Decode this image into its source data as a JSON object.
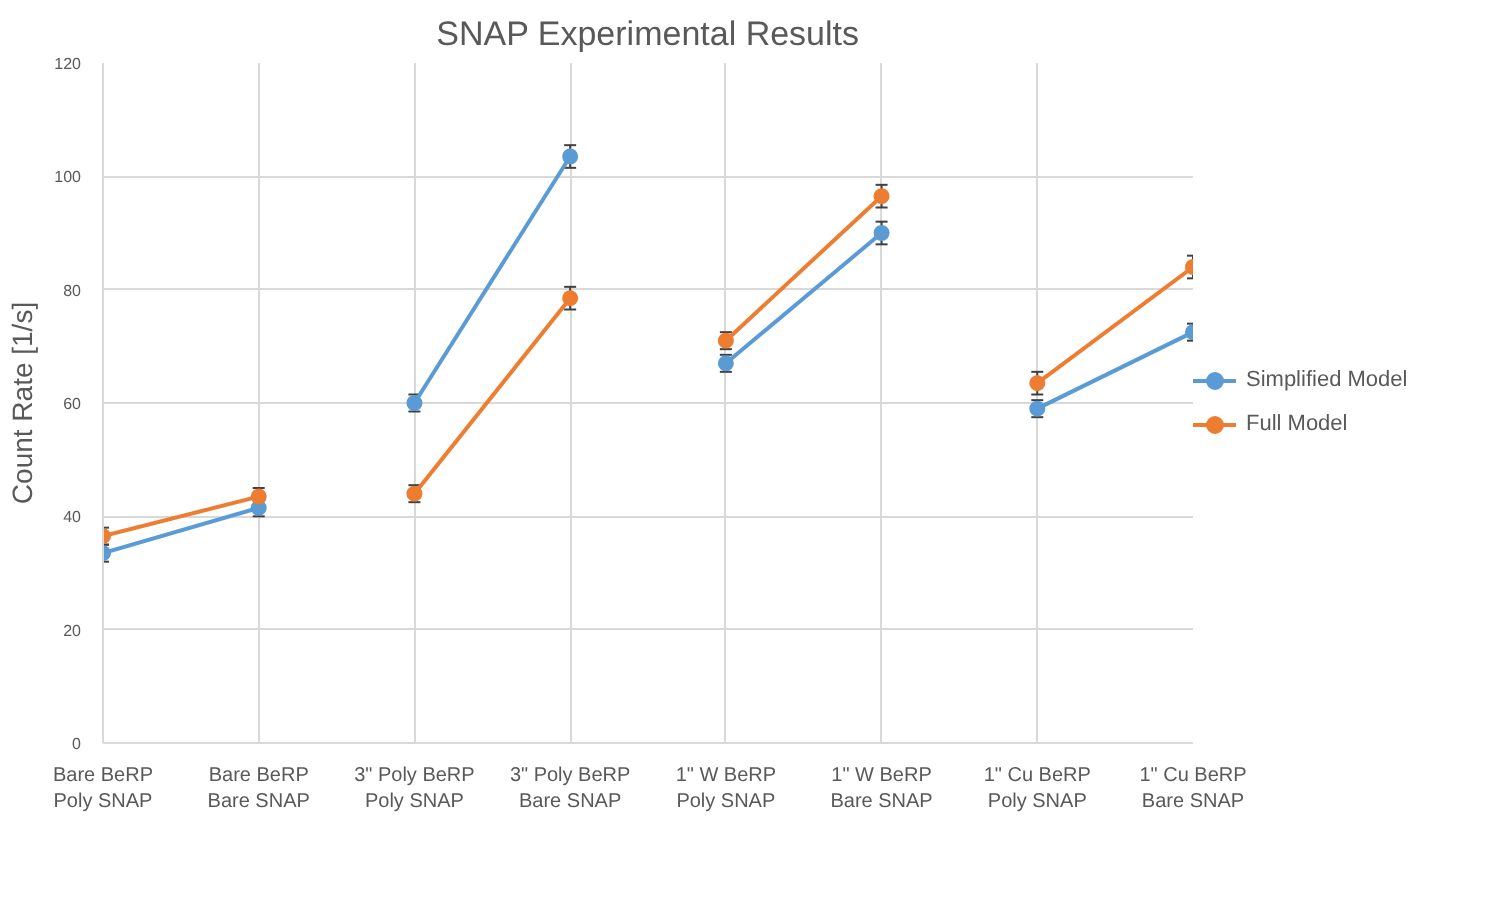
{
  "chart_data": {
    "type": "line",
    "title": "SNAP Experimental Results",
    "ylabel": "Count Rate [1/s]",
    "categories": [
      "Bare BeRP\nPoly SNAP",
      "Bare BeRP\nBare SNAP",
      "3\" Poly BeRP\nPoly SNAP",
      "3\" Poly BeRP\nBare SNAP",
      "1\" W BeRP\nPoly SNAP",
      "1\" W BeRP\nBare SNAP",
      "1\" Cu BeRP\nPoly SNAP",
      "1\" Cu BeRP\nBare SNAP"
    ],
    "ylim": [
      0,
      120
    ],
    "yticks": [
      0,
      20,
      40,
      60,
      80,
      100,
      120
    ],
    "grid": true,
    "legend": "right",
    "marker": "circle",
    "line_style": "solid",
    "series": [
      {
        "name": "Simplified Model",
        "color": "#5b9bd5",
        "x": [
          "Bare BeRP\nPoly SNAP",
          "Bare BeRP\nBare SNAP"
        ],
        "values": [
          33.5,
          41.5
        ],
        "errors": [
          1.5,
          1.5
        ]
      },
      {
        "name": "Full Model",
        "color": "#ed7d31",
        "x": [
          "Bare BeRP\nPoly SNAP",
          "Bare BeRP\nBare SNAP"
        ],
        "values": [
          36.5,
          43.5
        ],
        "errors": [
          1.5,
          1.5
        ]
      },
      {
        "color": "#5b9bd5",
        "x": [
          "3\" Poly BeRP\nPoly SNAP",
          "3\" Poly BeRP\nBare SNAP"
        ],
        "values": [
          60,
          103.5
        ],
        "errors": [
          1.5,
          2
        ]
      },
      {
        "color": "#ed7d31",
        "x": [
          "3\" Poly BeRP\nPoly SNAP",
          "3\" Poly BeRP\nBare SNAP"
        ],
        "values": [
          44,
          78.5
        ],
        "errors": [
          1.5,
          2
        ]
      },
      {
        "color": "#5b9bd5",
        "x": [
          "1\" W BeRP\nPoly SNAP",
          "1\" W BeRP\nBare SNAP"
        ],
        "values": [
          67,
          90
        ],
        "errors": [
          1.5,
          2
        ]
      },
      {
        "color": "#ed7d31",
        "x": [
          "1\" W BeRP\nPoly SNAP",
          "1\" W BeRP\nBare SNAP"
        ],
        "values": [
          71,
          96.5
        ],
        "errors": [
          1.5,
          2
        ]
      },
      {
        "color": "#5b9bd5",
        "x": [
          "1\" Cu BeRP\nPoly SNAP",
          "1\" Cu BeRP\nBare SNAP"
        ],
        "values": [
          59,
          72.5
        ],
        "errors": [
          1.5,
          1.5
        ]
      },
      {
        "color": "#ed7d31",
        "x": [
          "1\" Cu BeRP\nPoly SNAP",
          "1\" Cu BeRP\nBare SNAP"
        ],
        "values": [
          63.5,
          84
        ],
        "errors": [
          2,
          2
        ]
      }
    ]
  }
}
